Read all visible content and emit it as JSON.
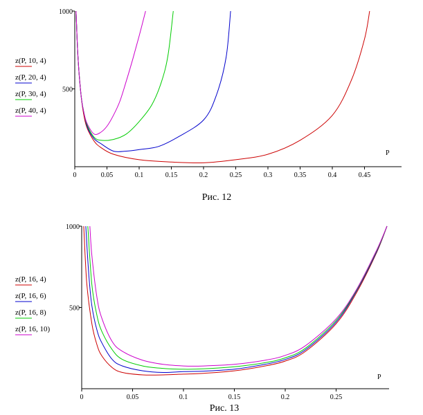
{
  "chart_data": [
    {
      "type": "line",
      "caption": "Рис. 12",
      "xlabel": "P",
      "ylabel": "",
      "xlim": [
        0,
        0.5
      ],
      "ylim": [
        0,
        1000
      ],
      "x_ticks": [
        "0",
        "0.05",
        "0.1",
        "0.15",
        "0.2",
        "0.25",
        "0.3",
        "0.35",
        "0.4",
        "0.45"
      ],
      "y_ticks": [
        "500",
        "1000"
      ],
      "legend_position": "left",
      "series": [
        {
          "name": "z(P, 10, 4)",
          "color": "#cc0000",
          "points": [
            [
              0.002,
              1000
            ],
            [
              0.005,
              700
            ],
            [
              0.01,
              450
            ],
            [
              0.015,
              310
            ],
            [
              0.02,
              240
            ],
            [
              0.03,
              165
            ],
            [
              0.04,
              125
            ],
            [
              0.06,
              80
            ],
            [
              0.1,
              45
            ],
            [
              0.15,
              30
            ],
            [
              0.2,
              25
            ],
            [
              0.25,
              45
            ],
            [
              0.3,
              80
            ],
            [
              0.35,
              170
            ],
            [
              0.4,
              330
            ],
            [
              0.43,
              560
            ],
            [
              0.45,
              820
            ],
            [
              0.458,
              1000
            ]
          ]
        },
        {
          "name": "z(P, 20, 4)",
          "color": "#0000cc",
          "points": [
            [
              0.002,
              1000
            ],
            [
              0.005,
              700
            ],
            [
              0.01,
              450
            ],
            [
              0.015,
              330
            ],
            [
              0.02,
              250
            ],
            [
              0.03,
              180
            ],
            [
              0.04,
              150
            ],
            [
              0.06,
              100
            ],
            [
              0.08,
              100
            ],
            [
              0.1,
              110
            ],
            [
              0.13,
              130
            ],
            [
              0.16,
              190
            ],
            [
              0.2,
              300
            ],
            [
              0.22,
              460
            ],
            [
              0.235,
              700
            ],
            [
              0.242,
              1000
            ]
          ]
        },
        {
          "name": "z(P, 30, 4)",
          "color": "#00cc00",
          "points": [
            [
              0.002,
              1000
            ],
            [
              0.005,
              700
            ],
            [
              0.01,
              450
            ],
            [
              0.015,
              330
            ],
            [
              0.02,
              260
            ],
            [
              0.03,
              190
            ],
            [
              0.04,
              170
            ],
            [
              0.06,
              175
            ],
            [
              0.08,
              210
            ],
            [
              0.1,
              290
            ],
            [
              0.12,
              400
            ],
            [
              0.135,
              550
            ],
            [
              0.145,
              720
            ],
            [
              0.153,
              1000
            ]
          ]
        },
        {
          "name": "z(P, 40, 4)",
          "color": "#cc00cc",
          "points": [
            [
              0.002,
              1000
            ],
            [
              0.005,
              700
            ],
            [
              0.01,
              450
            ],
            [
              0.015,
              330
            ],
            [
              0.02,
              270
            ],
            [
              0.03,
              210
            ],
            [
              0.04,
              220
            ],
            [
              0.05,
              260
            ],
            [
              0.06,
              330
            ],
            [
              0.07,
              420
            ],
            [
              0.08,
              550
            ],
            [
              0.09,
              690
            ],
            [
              0.1,
              840
            ],
            [
              0.11,
              1000
            ]
          ]
        }
      ]
    },
    {
      "type": "line",
      "caption": "Рис. 13",
      "xlabel": "P",
      "ylabel": "",
      "xlim": [
        0,
        0.3
      ],
      "ylim": [
        0,
        1000
      ],
      "x_ticks": [
        "0",
        "0.05",
        "0.1",
        "0.15",
        "0.2",
        "0.25"
      ],
      "y_ticks": [
        "500",
        "1000"
      ],
      "legend_position": "left",
      "series": [
        {
          "name": "z(P, 16, 4)",
          "color": "#cc0000",
          "points": [
            [
              0.002,
              1000
            ],
            [
              0.005,
              650
            ],
            [
              0.01,
              400
            ],
            [
              0.015,
              270
            ],
            [
              0.02,
              200
            ],
            [
              0.03,
              130
            ],
            [
              0.04,
              100
            ],
            [
              0.06,
              85
            ],
            [
              0.08,
              85
            ],
            [
              0.1,
              90
            ],
            [
              0.12,
              95
            ],
            [
              0.15,
              110
            ],
            [
              0.18,
              140
            ],
            [
              0.2,
              170
            ],
            [
              0.22,
              230
            ],
            [
              0.25,
              400
            ],
            [
              0.27,
              590
            ],
            [
              0.29,
              840
            ],
            [
              0.3,
              1000
            ]
          ]
        },
        {
          "name": "z(P, 16, 6)",
          "color": "#0000cc",
          "points": [
            [
              0.004,
              1000
            ],
            [
              0.007,
              700
            ],
            [
              0.01,
              510
            ],
            [
              0.015,
              360
            ],
            [
              0.02,
              280
            ],
            [
              0.03,
              180
            ],
            [
              0.04,
              140
            ],
            [
              0.06,
              110
            ],
            [
              0.08,
              100
            ],
            [
              0.1,
              105
            ],
            [
              0.12,
              108
            ],
            [
              0.15,
              120
            ],
            [
              0.18,
              150
            ],
            [
              0.2,
              180
            ],
            [
              0.22,
              240
            ],
            [
              0.25,
              410
            ],
            [
              0.27,
              600
            ],
            [
              0.29,
              845
            ],
            [
              0.3,
              1000
            ]
          ]
        },
        {
          "name": "z(P, 16, 8)",
          "color": "#00cc00",
          "points": [
            [
              0.006,
              1000
            ],
            [
              0.01,
              640
            ],
            [
              0.015,
              450
            ],
            [
              0.02,
              350
            ],
            [
              0.03,
              240
            ],
            [
              0.04,
              180
            ],
            [
              0.06,
              140
            ],
            [
              0.08,
              125
            ],
            [
              0.1,
              120
            ],
            [
              0.12,
              122
            ],
            [
              0.15,
              135
            ],
            [
              0.18,
              160
            ],
            [
              0.2,
              190
            ],
            [
              0.22,
              250
            ],
            [
              0.25,
              420
            ],
            [
              0.27,
              605
            ],
            [
              0.29,
              850
            ],
            [
              0.3,
              1000
            ]
          ]
        },
        {
          "name": "z(P, 16, 10)",
          "color": "#cc00cc",
          "points": [
            [
              0.008,
              1000
            ],
            [
              0.01,
              820
            ],
            [
              0.015,
              560
            ],
            [
              0.02,
              430
            ],
            [
              0.03,
              290
            ],
            [
              0.04,
              230
            ],
            [
              0.06,
              175
            ],
            [
              0.08,
              150
            ],
            [
              0.1,
              140
            ],
            [
              0.12,
              140
            ],
            [
              0.15,
              150
            ],
            [
              0.18,
              175
            ],
            [
              0.2,
              205
            ],
            [
              0.22,
              265
            ],
            [
              0.25,
              430
            ],
            [
              0.27,
              610
            ],
            [
              0.29,
              855
            ],
            [
              0.3,
              1000
            ]
          ]
        }
      ]
    }
  ]
}
